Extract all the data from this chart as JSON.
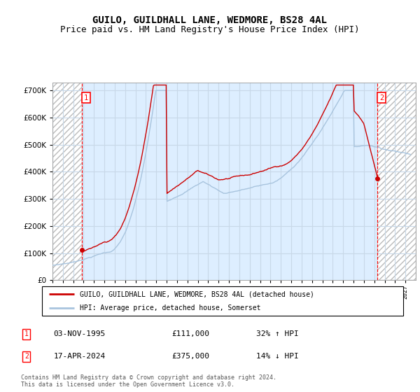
{
  "title": "GUILO, GUILDHALL LANE, WEDMORE, BS28 4AL",
  "subtitle": "Price paid vs. HM Land Registry's House Price Index (HPI)",
  "ylim": [
    0,
    730000
  ],
  "yticks": [
    0,
    100000,
    200000,
    300000,
    400000,
    500000,
    600000,
    700000
  ],
  "sale1": {
    "date_num": 1995.84,
    "price": 111000,
    "label": "1",
    "date_str": "03-NOV-1995",
    "hpi_pct": "32% ↑ HPI"
  },
  "sale2": {
    "date_num": 2024.29,
    "price": 375000,
    "label": "2",
    "date_str": "17-APR-2024",
    "hpi_pct": "14% ↓ HPI"
  },
  "legend_line1": "GUILO, GUILDHALL LANE, WEDMORE, BS28 4AL (detached house)",
  "legend_line2": "HPI: Average price, detached house, Somerset",
  "footnote": "Contains HM Land Registry data © Crown copyright and database right 2024.\nThis data is licensed under the Open Government Licence v3.0.",
  "hpi_color": "#a8c4de",
  "price_color": "#cc0000",
  "plot_bg_color": "#ddeeff",
  "grid_color": "#c8d8e8",
  "title_fontsize": 10,
  "subtitle_fontsize": 9,
  "xstart": 1993,
  "xend": 2028
}
